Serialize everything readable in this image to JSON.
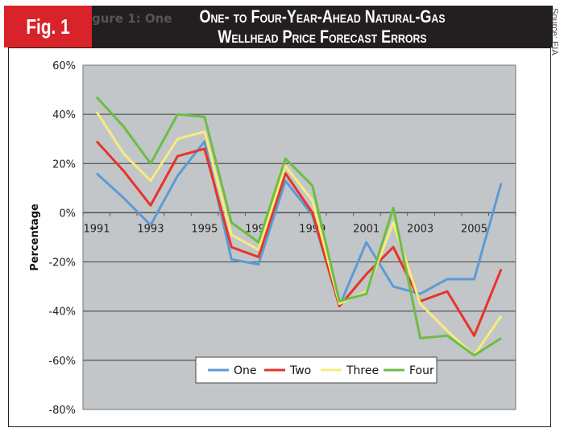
{
  "header": {
    "fig_label": "Fig. 1",
    "title_line1": "One- to Four-Year-Ahead Natural-Gas",
    "title_line2": "Wellhead Price Forecast Errors",
    "ghost_text": "gure 1: One",
    "source": "Source: EIA"
  },
  "chart_data": {
    "type": "line",
    "title": "One- to Four-Year-Ahead Natural-Gas Wellhead Price Forecast Errors",
    "xlabel": "",
    "ylabel": "Percentage",
    "x": [
      1991,
      1992,
      1993,
      1994,
      1995,
      1996,
      1997,
      1998,
      1999,
      2000,
      2001,
      2002,
      2003,
      2004,
      2005,
      2006
    ],
    "x_tick_labels": [
      "1991",
      "1993",
      "1995",
      "1997",
      "1999",
      "2001",
      "2003",
      "2005"
    ],
    "y_tick_labels": [
      "60%",
      "40%",
      "20%",
      "0%",
      "-20%",
      "-40%",
      "-60%",
      "-80%"
    ],
    "ylim": [
      -80,
      60
    ],
    "grid": true,
    "legend_position": "bottom-center",
    "series": [
      {
        "name": "One",
        "color": "#5b9bd5",
        "values": [
          16,
          6,
          -5,
          15,
          29,
          -19,
          -21,
          13,
          -1,
          -38,
          -12,
          -30,
          -33,
          -27,
          -27,
          12
        ]
      },
      {
        "name": "Two",
        "color": "#e8332a",
        "values": [
          29,
          17,
          3,
          23,
          26,
          -14,
          -18,
          16,
          0,
          -38,
          -25,
          -14,
          -36,
          -32,
          -50,
          -23
        ]
      },
      {
        "name": "Three",
        "color": "#f7ec7c",
        "values": [
          41,
          24,
          13,
          30,
          33,
          -9,
          -15,
          19,
          5,
          -37,
          -32,
          -4,
          -37,
          -48,
          -58,
          -42
        ]
      },
      {
        "name": "Four",
        "color": "#6dbd45",
        "values": [
          47,
          35,
          20,
          40,
          39,
          -4,
          -12,
          22,
          11,
          -36,
          -33,
          2,
          -51,
          -50,
          -58,
          -51
        ]
      }
    ]
  }
}
